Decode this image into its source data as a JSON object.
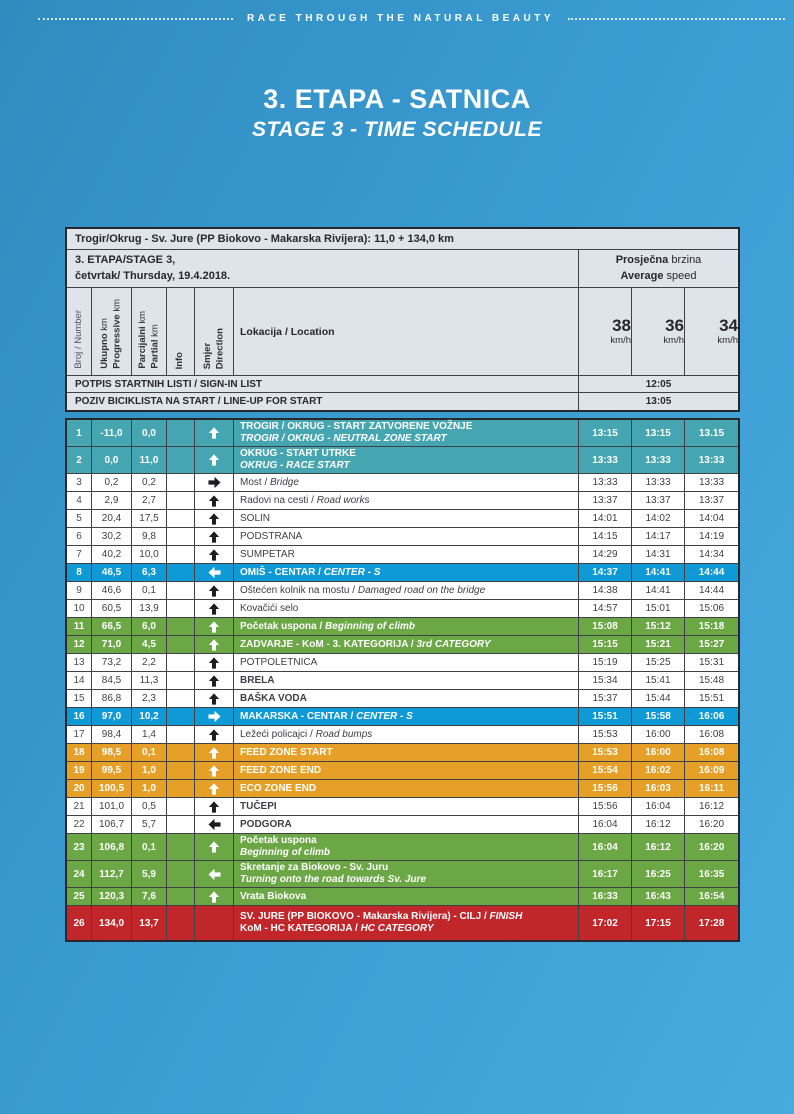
{
  "header": {
    "tagline": "RACE THROUGH THE NATURAL BEAUTY",
    "title": "3. ETAPA - SATNICA",
    "subtitle": "STAGE 3 - TIME SCHEDULE"
  },
  "schedule": {
    "route_title": "Trogir/Okrug - Sv. Jure (PP Biokovo - Makarska Rivijera): 11,0 + 134,0 km",
    "stage": {
      "line1": "3. ETAPA/STAGE 3,",
      "line2": "četvrtak/ Thursday, 19.4.2018."
    },
    "avg_speed": {
      "hr_bold": "Prosječna",
      "hr_rest": "brzina",
      "en_bold": "Average",
      "en_rest": "speed"
    },
    "columns": {
      "number": "Broj / Number",
      "progressive": {
        "hr_bold": "Ukupno",
        "hr_rest": "km",
        "en_bold": "Progressive",
        "en_rest": "km"
      },
      "partial": {
        "hr_bold": "Parcijalni",
        "hr_rest": "km",
        "en_bold": "Partial",
        "en_rest": "km"
      },
      "info": "Info",
      "direction": {
        "line1": "Smjer",
        "line2": "Direction"
      },
      "location": "Lokacija / Location"
    },
    "speeds": [
      {
        "value": "38",
        "unit": "km/h"
      },
      {
        "value": "36",
        "unit": "km/h"
      },
      {
        "value": "34",
        "unit": "km/h"
      }
    ],
    "signin": [
      {
        "label": "POTPIS STARTNIH LISTI / SIGN-IN LIST",
        "time": "12:05"
      },
      {
        "label": "POZIV BICIKLISTA NA START / LINE-UP FOR START",
        "time": "13:05"
      }
    ],
    "colors": {
      "teal": "#45a6b2",
      "blue": "#0f9ad6",
      "green": "#6ba845",
      "orange": "#e6a027",
      "red": "#c1262b",
      "header_bg": "#dfe3ea",
      "page_top": "#2f8cbf",
      "page_bottom": "#47abdf"
    },
    "rows": [
      {
        "n": "1",
        "prog": "-11,0",
        "part": "0,0",
        "dir": "up",
        "l1": "TROGIR / OKRUG - START ZATVORENE VOŽNJE",
        "l1i": "",
        "l2": "",
        "l2i": "TROGIR / OKRUG - NEUTRAL ZONE START",
        "c": "teal",
        "b": false,
        "t": [
          "13:15",
          "13:15",
          "13.15"
        ]
      },
      {
        "n": "2",
        "prog": "0,0",
        "part": "11,0",
        "dir": "up",
        "l1": "OKRUG - START UTRKE",
        "l1i": "",
        "l2": "",
        "l2i": "OKRUG - RACE START",
        "c": "teal",
        "b": false,
        "t": [
          "13:33",
          "13:33",
          "13:33"
        ]
      },
      {
        "n": "3",
        "prog": "0,2",
        "part": "0,2",
        "dir": "right",
        "l1": "Most / ",
        "l1i": "Bridge",
        "l2": "",
        "l2i": "",
        "c": "",
        "b": false,
        "t": [
          "13:33",
          "13:33",
          "13:33"
        ]
      },
      {
        "n": "4",
        "prog": "2,9",
        "part": "2,7",
        "dir": "up",
        "l1": "Radovi na cesti / ",
        "l1i": "Road works",
        "l2": "",
        "l2i": "",
        "c": "",
        "b": false,
        "t": [
          "13:37",
          "13:37",
          "13:37"
        ]
      },
      {
        "n": "5",
        "prog": "20,4",
        "part": "17,5",
        "dir": "up",
        "l1": "SOLIN",
        "l1i": "",
        "l2": "",
        "l2i": "",
        "c": "",
        "b": false,
        "t": [
          "14:01",
          "14:02",
          "14:04"
        ]
      },
      {
        "n": "6",
        "prog": "30,2",
        "part": "9,8",
        "dir": "up",
        "l1": "PODSTRANA",
        "l1i": "",
        "l2": "",
        "l2i": "",
        "c": "",
        "b": false,
        "t": [
          "14:15",
          "14:17",
          "14:19"
        ]
      },
      {
        "n": "7",
        "prog": "40,2",
        "part": "10,0",
        "dir": "up",
        "l1": "SUMPETAR",
        "l1i": "",
        "l2": "",
        "l2i": "",
        "c": "",
        "b": false,
        "t": [
          "14:29",
          "14:31",
          "14:34"
        ]
      },
      {
        "n": "8",
        "prog": "46,5",
        "part": "6,3",
        "dir": "left",
        "l1": "OMIŠ - CENTAR / ",
        "l1i": "CENTER - S",
        "l2": "",
        "l2i": "",
        "c": "blue",
        "b": false,
        "t": [
          "14:37",
          "14:41",
          "14:44"
        ]
      },
      {
        "n": "9",
        "prog": "46,6",
        "part": "0,1",
        "dir": "up",
        "l1": "Oštećen kolnik na mostu / ",
        "l1i": "Damaged road on the bridge",
        "l2": "",
        "l2i": "",
        "c": "",
        "b": false,
        "t": [
          "14:38",
          "14:41",
          "14:44"
        ]
      },
      {
        "n": "10",
        "prog": "60,5",
        "part": "13,9",
        "dir": "up",
        "l1": "Kovačići selo",
        "l1i": "",
        "l2": "",
        "l2i": "",
        "c": "",
        "b": false,
        "t": [
          "14:57",
          "15:01",
          "15:06"
        ]
      },
      {
        "n": "11",
        "prog": "66,5",
        "part": "6,0",
        "dir": "up",
        "l1": "Početak uspona / ",
        "l1i": "Beginning of climb",
        "l2": "",
        "l2i": "",
        "c": "green",
        "b": false,
        "t": [
          "15:08",
          "15:12",
          "15:18"
        ]
      },
      {
        "n": "12",
        "prog": "71,0",
        "part": "4,5",
        "dir": "up",
        "l1": "ZADVARJE - KoM - 3. KATEGORIJA / ",
        "l1i": "3rd CATEGORY",
        "l2": "",
        "l2i": "",
        "c": "green",
        "b": false,
        "t": [
          "15:15",
          "15:21",
          "15:27"
        ]
      },
      {
        "n": "13",
        "prog": "73,2",
        "part": "2,2",
        "dir": "up",
        "l1": "POTPOLETNICA",
        "l1i": "",
        "l2": "",
        "l2i": "",
        "c": "",
        "b": false,
        "t": [
          "15:19",
          "15:25",
          "15:31"
        ]
      },
      {
        "n": "14",
        "prog": "84,5",
        "part": "11,3",
        "dir": "up",
        "l1": "BRELA",
        "l1i": "",
        "l2": "",
        "l2i": "",
        "c": "",
        "b": true,
        "t": [
          "15:34",
          "15:41",
          "15:48"
        ]
      },
      {
        "n": "15",
        "prog": "86,8",
        "part": "2,3",
        "dir": "up",
        "l1": "BAŠKA VODA",
        "l1i": "",
        "l2": "",
        "l2i": "",
        "c": "",
        "b": true,
        "t": [
          "15:37",
          "15:44",
          "15:51"
        ]
      },
      {
        "n": "16",
        "prog": "97,0",
        "part": "10,2",
        "dir": "right",
        "l1": "MAKARSKA - CENTAR / ",
        "l1i": "CENTER - S",
        "l2": "",
        "l2i": "",
        "c": "blue",
        "b": false,
        "t": [
          "15:51",
          "15:58",
          "16:06"
        ]
      },
      {
        "n": "17",
        "prog": "98,4",
        "part": "1,4",
        "dir": "up",
        "l1": "Ležeći policajci / ",
        "l1i": "Road bumps",
        "l2": "",
        "l2i": "",
        "c": "",
        "b": false,
        "t": [
          "15:53",
          "16:00",
          "16:08"
        ]
      },
      {
        "n": "18",
        "prog": "98,5",
        "part": "0,1",
        "dir": "up",
        "l1": "FEED ZONE START",
        "l1i": "",
        "l2": "",
        "l2i": "",
        "c": "orange",
        "b": false,
        "t": [
          "15:53",
          "16:00",
          "16:08"
        ]
      },
      {
        "n": "19",
        "prog": "99,5",
        "part": "1,0",
        "dir": "up",
        "l1": "FEED ZONE END",
        "l1i": "",
        "l2": "",
        "l2i": "",
        "c": "orange",
        "b": false,
        "t": [
          "15:54",
          "16:02",
          "16:09"
        ]
      },
      {
        "n": "20",
        "prog": "100,5",
        "part": "1,0",
        "dir": "up",
        "l1": "ECO ZONE END",
        "l1i": "",
        "l2": "",
        "l2i": "",
        "c": "orange",
        "b": false,
        "t": [
          "15:56",
          "16:03",
          "16:11"
        ]
      },
      {
        "n": "21",
        "prog": "101,0",
        "part": "0,5",
        "dir": "up",
        "l1": "TUČEPI",
        "l1i": "",
        "l2": "",
        "l2i": "",
        "c": "",
        "b": true,
        "t": [
          "15:56",
          "16:04",
          "16:12"
        ]
      },
      {
        "n": "22",
        "prog": "106,7",
        "part": "5,7",
        "dir": "left",
        "l1": "PODGORA",
        "l1i": "",
        "l2": "",
        "l2i": "",
        "c": "",
        "b": true,
        "t": [
          "16:04",
          "16:12",
          "16:20"
        ]
      },
      {
        "n": "23",
        "prog": "106,8",
        "part": "0,1",
        "dir": "up",
        "l1": "Početak uspona",
        "l1i": "",
        "l2": "",
        "l2i": "Beginning of climb",
        "c": "green",
        "b": false,
        "t": [
          "16:04",
          "16:12",
          "16:20"
        ]
      },
      {
        "n": "24",
        "prog": "112,7",
        "part": "5,9",
        "dir": "left",
        "l1": "Skretanje za Biokovo - Sv. Juru",
        "l1i": "",
        "l2": "",
        "l2i": "Turning onto the road towards Sv. Jure",
        "c": "green",
        "b": false,
        "t": [
          "16:17",
          "16:25",
          "16:35"
        ]
      },
      {
        "n": "25",
        "prog": "120,3",
        "part": "7,6",
        "dir": "up",
        "l1": "Vrata Biokova",
        "l1i": "",
        "l2": "",
        "l2i": "",
        "c": "green",
        "b": false,
        "t": [
          "16:33",
          "16:43",
          "16:54"
        ]
      },
      {
        "n": "26",
        "prog": "134,0",
        "part": "13,7",
        "dir": "",
        "l1": "SV. JURE (PP BIOKOVO - Makarska Rivijera) - CILJ / ",
        "l1i": "FINISH",
        "l2": "KoM - HC KATEGORIJA / ",
        "l2i": "HC CATEGORY",
        "c": "red",
        "b": false,
        "t": [
          "17:02",
          "17:15",
          "17:28"
        ]
      }
    ]
  }
}
